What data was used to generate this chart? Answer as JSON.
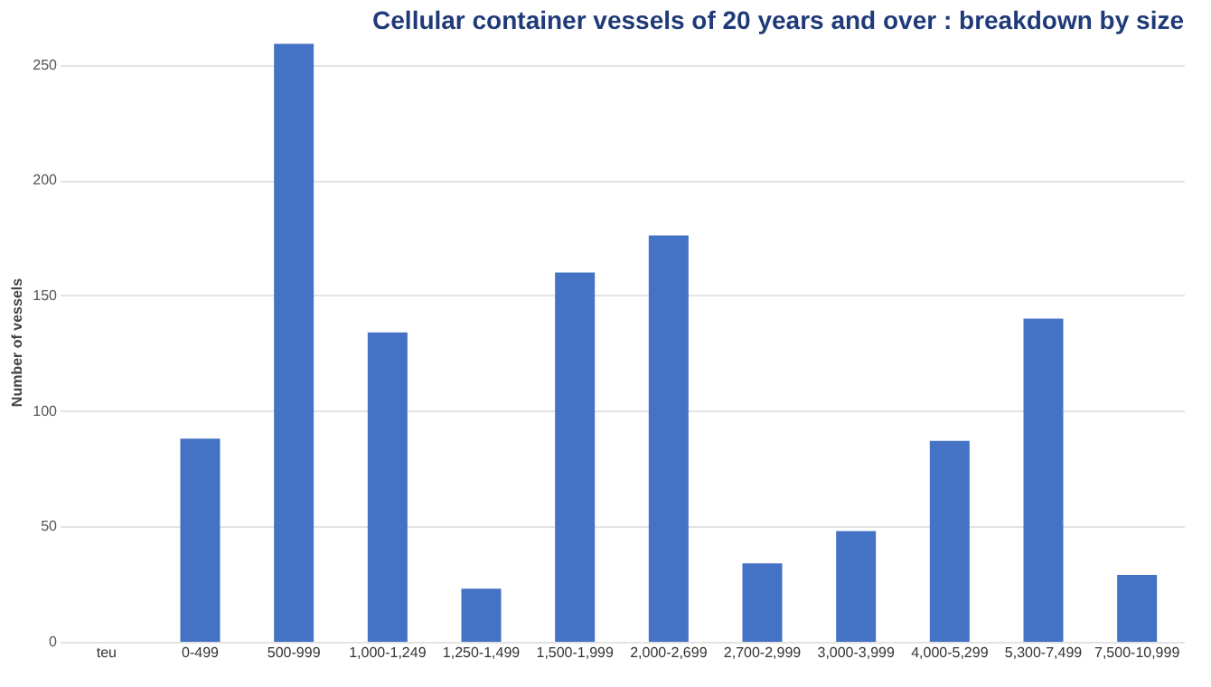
{
  "chart_data": {
    "type": "bar",
    "title": "Cellular container vessels of 20 years and over : breakdown by size",
    "ylabel": "Number of vessels",
    "categories": [
      "teu",
      "0-499",
      "500-999",
      "1,000-1,249",
      "1,250-1,499",
      "1,500-1,999",
      "2,000-2,699",
      "2,700-2,999",
      "3,000-3,999",
      "4,000-5,299",
      "5,300-7,499",
      "7,500-10,999"
    ],
    "values": [
      null,
      88,
      259,
      134,
      23,
      160,
      176,
      34,
      48,
      87,
      140,
      29
    ],
    "color": "#4472c4",
    "ylim": [
      0,
      260
    ],
    "yticks": [
      0,
      50,
      100,
      150,
      200,
      250
    ],
    "grid": "y"
  }
}
